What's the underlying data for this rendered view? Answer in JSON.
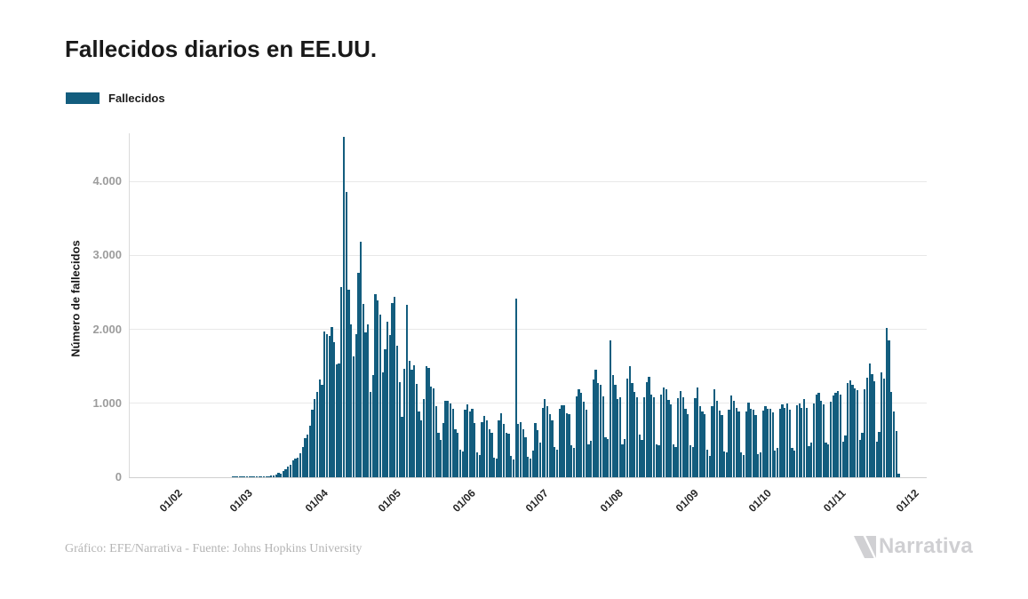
{
  "header": {
    "title": "Fallecidos diarios en EE.UU."
  },
  "legend": {
    "items": [
      {
        "label": "Fallecidos",
        "color": "#135d7e"
      }
    ]
  },
  "footer": {
    "credit": "Gráfico: EFE/Narrativa - Fuente: Johns Hopkins University",
    "logo_text": "Narrativa"
  },
  "chart_data": {
    "type": "bar",
    "title": "Fallecidos diarios en EE.UU.",
    "series_name": "Fallecidos",
    "xlabel": "",
    "ylabel": "Número de fallecidos",
    "bar_color": "#135d7e",
    "grid": true,
    "legend_position": "top-left",
    "ylim": [
      0,
      4650
    ],
    "yticks": [
      {
        "value": 0,
        "label": "0"
      },
      {
        "value": 1000,
        "label": "1.000"
      },
      {
        "value": 2000,
        "label": "2.000"
      },
      {
        "value": 3000,
        "label": "3.000"
      },
      {
        "value": 4000,
        "label": "4.000"
      }
    ],
    "xticks": [
      {
        "day": 14,
        "label": "01/02"
      },
      {
        "day": 43,
        "label": "01/03"
      },
      {
        "day": 74,
        "label": "01/04"
      },
      {
        "day": 104,
        "label": "01/05"
      },
      {
        "day": 135,
        "label": "01/06"
      },
      {
        "day": 165,
        "label": "01/07"
      },
      {
        "day": 196,
        "label": "01/08"
      },
      {
        "day": 227,
        "label": "01/09"
      },
      {
        "day": 257,
        "label": "01/10"
      },
      {
        "day": 288,
        "label": "01/11"
      },
      {
        "day": 318,
        "label": "01/12"
      }
    ],
    "axis": {
      "total_days": 329,
      "data_start_day": 14
    },
    "values": [
      0,
      0,
      0,
      0,
      0,
      0,
      0,
      0,
      0,
      0,
      0,
      0,
      0,
      0,
      0,
      0,
      0,
      0,
      0,
      0,
      0,
      0,
      0,
      0,
      0,
      0,
      0,
      0,
      1,
      1,
      1,
      4,
      3,
      2,
      4,
      3,
      4,
      6,
      4,
      8,
      6,
      10,
      11,
      18,
      22,
      26,
      42,
      56,
      49,
      80,
      110,
      141,
      167,
      225,
      247,
      268,
      330,
      411,
      525,
      572,
      700,
      909,
      1059,
      1151,
      1321,
      1255,
      1970,
      1940,
      1906,
      2035,
      1830,
      1528,
      1535,
      2570,
      4600,
      3860,
      2535,
      2061,
      1640,
      1939,
      2760,
      3179,
      2341,
      1957,
      2065,
      1157,
      1384,
      2470,
      2390,
      2201,
      1421,
      1730,
      2100,
      1925,
      2353,
      2436,
      1780,
      1285,
      820,
      1465,
      2333,
      1574,
      1457,
      1510,
      1263,
      894,
      765,
      1052,
      1500,
      1479,
      1224,
      1203,
      958,
      605,
      505,
      728,
      1031,
      1036,
      995,
      921,
      655,
      605,
      373,
      353,
      908,
      984,
      894,
      927,
      732,
      338,
      303,
      741,
      825,
      767,
      653,
      599,
      267,
      254,
      766,
      869,
      721,
      601,
      591,
      289,
      240,
      2419,
      725,
      751,
      651,
      540,
      271,
      254,
      356,
      733,
      631,
      463,
      933,
      1063,
      964,
      856,
      766,
      404,
      375,
      921,
      976,
      969,
      867,
      853,
      436,
      398,
      1093,
      1195,
      1140,
      1019,
      908,
      441,
      491,
      1326,
      1449,
      1268,
      1244,
      1094,
      541,
      515,
      1850,
      1380,
      1244,
      1052,
      1078,
      446,
      515,
      1331,
      1504,
      1277,
      1149,
      1087,
      572,
      510,
      1087,
      1283,
      1356,
      1113,
      1087,
      446,
      428,
      1114,
      1212,
      1184,
      1051,
      983,
      448,
      414,
      1065,
      1164,
      1084,
      927,
      848,
      427,
      406,
      1071,
      1208,
      960,
      893,
      848,
      375,
      293,
      961,
      1190,
      1031,
      906,
      837,
      354,
      336,
      919,
      1110,
      1028,
      941,
      890,
      336,
      297,
      892,
      1011,
      926,
      914,
      837,
      316,
      331,
      903,
      956,
      930,
      924,
      880,
      357,
      391,
      925,
      987,
      941,
      992,
      912,
      394,
      356,
      968,
      995,
      942,
      1058,
      940,
      415,
      464,
      992,
      1122,
      1136,
      1038,
      980,
      470,
      450,
      1020,
      1109,
      1141,
      1166,
      1120,
      486,
      560,
      1270,
      1311,
      1254,
      1201,
      1178,
      505,
      601,
      1190,
      1347,
      1534,
      1389,
      1301,
      480,
      611,
      1422,
      1330,
      2024,
      1855,
      1150,
      890,
      620,
      48
    ]
  }
}
